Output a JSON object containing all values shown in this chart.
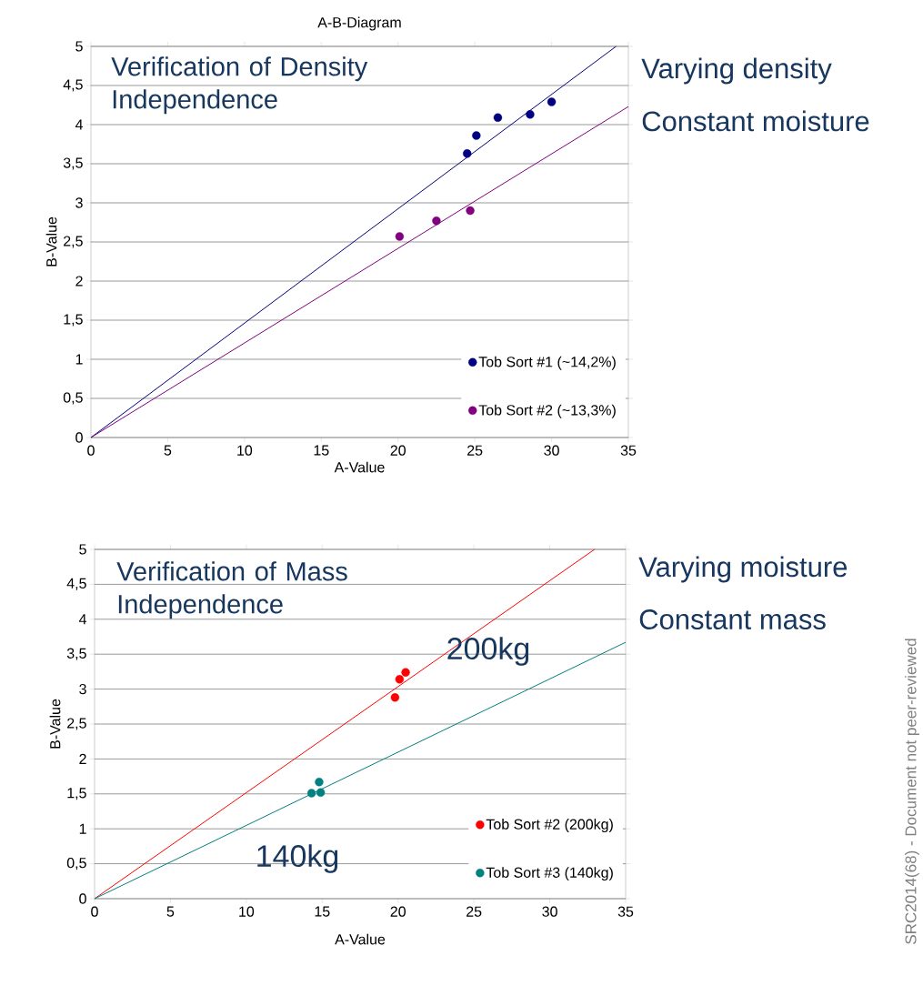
{
  "chart_data": [
    {
      "type": "scatter",
      "title": "A-B-Diagram",
      "xlabel": "A-Value",
      "ylabel": "B-Value",
      "xlim": [
        0,
        35
      ],
      "ylim": [
        0,
        5
      ],
      "xticks": [
        0,
        5,
        10,
        15,
        20,
        25,
        30,
        35
      ],
      "yticks": [
        0,
        {
          "value": 0.5,
          "label": "0,5"
        },
        1,
        {
          "value": 1.5,
          "label": "1,5"
        },
        2,
        {
          "value": 2.5,
          "label": "2,5"
        },
        3,
        {
          "value": 3.5,
          "label": "3,5"
        },
        4,
        {
          "value": 4.5,
          "label": "4,5"
        },
        5
      ],
      "grid": "y",
      "legend": "bottom right",
      "series": [
        {
          "name": "Tob Sort #1 (~14,2%)",
          "marker": "circle",
          "color": "#000080",
          "x": [
            24.5,
            25.1,
            26.5,
            28.6,
            30.0
          ],
          "values": [
            3.63,
            3.86,
            4.09,
            4.13,
            4.29
          ]
        },
        {
          "name": "Tob Sort #2 (~13,3%)",
          "marker": "circle",
          "color": "#800080",
          "x": [
            20.1,
            22.5,
            24.7
          ],
          "values": [
            2.57,
            2.77,
            2.9
          ]
        },
        {
          "type": "line",
          "marker": "none",
          "color": "#000080",
          "x": [
            0,
            34.2
          ],
          "values": [
            0,
            5
          ]
        },
        {
          "type": "line",
          "marker": "none",
          "color": "#800080",
          "x": [
            0,
            35
          ],
          "values": [
            0,
            4.23
          ]
        }
      ],
      "annotations": [
        "Verification of Density Independence",
        "Varying density",
        "Constant moisture"
      ]
    },
    {
      "type": "scatter",
      "xlabel": "A-Value",
      "ylabel": "B-Value",
      "xlim": [
        0,
        35
      ],
      "ylim": [
        0,
        5
      ],
      "xticks": [
        0,
        5,
        10,
        15,
        20,
        25,
        30,
        35
      ],
      "yticks": [
        0,
        {
          "value": 0.5,
          "label": "0,5"
        },
        1,
        {
          "value": 1.5,
          "label": "1,5"
        },
        2,
        {
          "value": 2.5,
          "label": "2,5"
        },
        3,
        {
          "value": 3.5,
          "label": "3,5"
        },
        4,
        {
          "value": 4.5,
          "label": "4,5"
        },
        5
      ],
      "grid": "y",
      "legend": "bottom right",
      "series": [
        {
          "name": "Tob Sort #2 (200kg)",
          "marker": "circle",
          "color": "#ff0000",
          "x": [
            20.5,
            20.1,
            19.8
          ],
          "values": [
            3.24,
            3.14,
            2.88
          ]
        },
        {
          "name": "Tob Sort #3 (140kg)",
          "marker": "circle",
          "color": "#008080",
          "x": [
            14.8,
            14.3,
            14.9
          ],
          "values": [
            1.67,
            1.51,
            1.52
          ]
        },
        {
          "type": "line",
          "marker": "none",
          "color": "#ff0000",
          "x": [
            0,
            32.95
          ],
          "values": [
            0,
            5
          ]
        },
        {
          "type": "line",
          "marker": "none",
          "color": "#008080",
          "x": [
            0,
            35
          ],
          "values": [
            0,
            3.67
          ]
        }
      ],
      "annotations": [
        "Verification of Mass Independence",
        "200kg",
        "140kg",
        "Varying moisture",
        "Constant mass",
        "SRC2014(68) - Document not peer-reviewed"
      ]
    }
  ]
}
